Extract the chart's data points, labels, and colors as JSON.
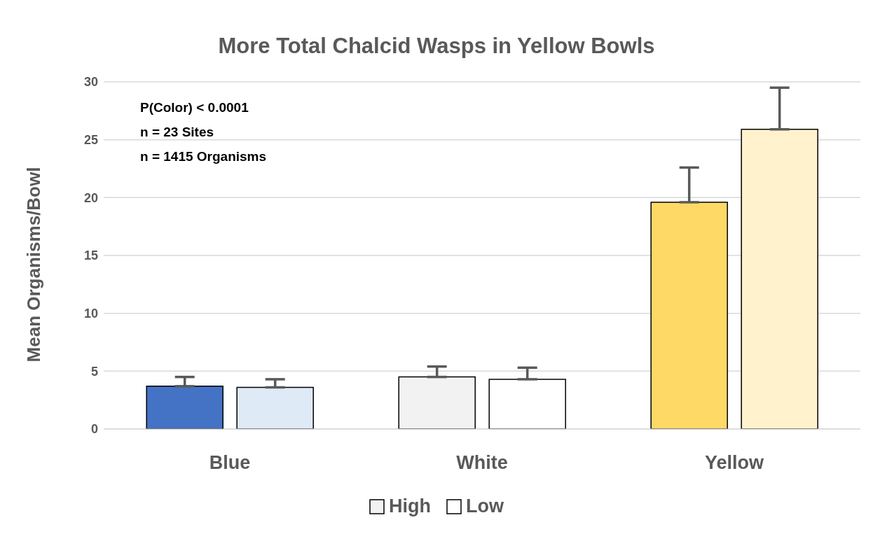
{
  "chart_data": {
    "type": "bar",
    "title": "More Total Chalcid Wasps in Yellow Bowls",
    "ylabel": "Mean Organisms/Bowl",
    "categories": [
      "Blue",
      "White",
      "Yellow"
    ],
    "series": [
      {
        "name": "High",
        "color": "#f2f2f2",
        "colors": [
          "#4472c4",
          "#f2f2f2",
          "#ffd966"
        ],
        "values": [
          3.7,
          4.5,
          19.6
        ],
        "errors": [
          0.8,
          0.9,
          3.0
        ]
      },
      {
        "name": "Low",
        "color": "#ffffff",
        "colors": [
          "#deebf7",
          "#ffffff",
          "#fff2cc"
        ],
        "values": [
          3.6,
          4.3,
          25.9
        ],
        "errors": [
          0.7,
          1.0,
          3.6
        ]
      }
    ],
    "ylim": [
      0,
      30
    ],
    "yticks": [
      0,
      5,
      10,
      15,
      20,
      25,
      30
    ],
    "grid": "y",
    "legend": "bottom",
    "annotations": [
      "P(Color) < 0.0001",
      "n = 23 Sites",
      "n = 1415 Organisms"
    ]
  }
}
